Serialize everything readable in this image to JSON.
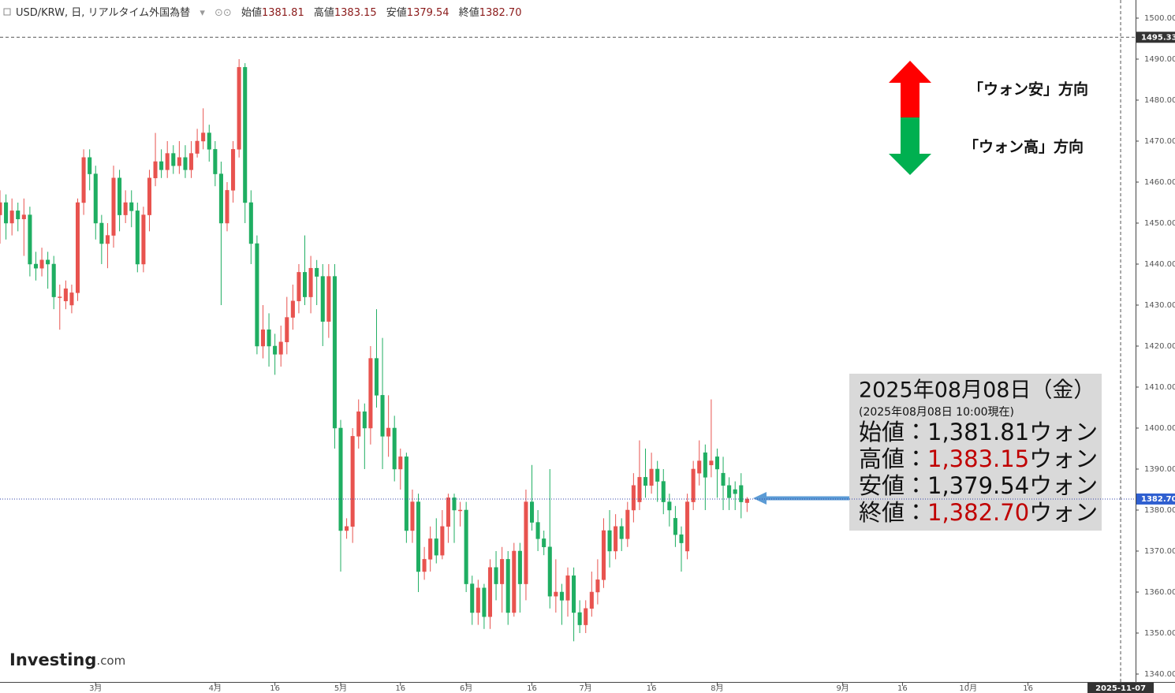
{
  "header": {
    "symbol": "USD/KRW, 日, リアルタイム外国為替",
    "open_label": "始値",
    "open": "1381.81",
    "high_label": "高値",
    "high": "1383.15",
    "low_label": "安値",
    "low": "1379.54",
    "close_label": "終値",
    "close": "1382.70"
  },
  "logo": {
    "brand": "Investing",
    "suffix": ".com"
  },
  "direction_labels": {
    "up": "「ウォン安」方向",
    "down": "「ウォン高」方向"
  },
  "info_box": {
    "date": "2025年08月08日（金）",
    "as_of": "(2025年08月08日 10:00現在)",
    "rows": [
      {
        "label": "始値：",
        "value": "1,381.81",
        "unit": "ウォン",
        "value_color": "#111111"
      },
      {
        "label": "高値：",
        "value": "1,383.15",
        "unit": "ウォン",
        "value_color": "#c00000"
      },
      {
        "label": "安値：",
        "value": "1,379.54",
        "unit": "ウォン",
        "value_color": "#111111"
      },
      {
        "label": "終値：",
        "value": "1,382.70",
        "unit": "ウォン",
        "value_color": "#c00000"
      }
    ]
  },
  "chart_data": {
    "type": "candlestick",
    "up_color": "#e8534f",
    "down_color": "#1fae62",
    "x": [
      0,
      1,
      2,
      3,
      4,
      5,
      6,
      7,
      8,
      9,
      10,
      11,
      12,
      13,
      14,
      15,
      16,
      17,
      18,
      19,
      20,
      21,
      22,
      23,
      24,
      25,
      26,
      27,
      28,
      29,
      30,
      31,
      32,
      33,
      34,
      35,
      36,
      37,
      38,
      39,
      40,
      41,
      42,
      43,
      44,
      45,
      46,
      47,
      48,
      49,
      50,
      51,
      52,
      53,
      54,
      55,
      56,
      57,
      58,
      59,
      60,
      61,
      62,
      63,
      64,
      65,
      66,
      67,
      68,
      69,
      70,
      71,
      72,
      73,
      74,
      75,
      76,
      77,
      78,
      79,
      80,
      81,
      82,
      83,
      84,
      85,
      86,
      87,
      88,
      89,
      90,
      91,
      92,
      93,
      94,
      95,
      96,
      97,
      98,
      99,
      100,
      101,
      102,
      103,
      104,
      105,
      106,
      107,
      108,
      109,
      110,
      111,
      112,
      113,
      114,
      115,
      116,
      117,
      118,
      119,
      120,
      121,
      122,
      123,
      124,
      125
    ],
    "open": [
      1452,
      1455,
      1450,
      1453,
      1451,
      1452,
      1440,
      1439,
      1441,
      1440,
      1432,
      1431,
      1430,
      1433,
      1455,
      1466,
      1462,
      1450,
      1445,
      1447,
      1461,
      1452,
      1455,
      1453,
      1440,
      1452,
      1461,
      1465,
      1463,
      1467,
      1464,
      1466,
      1463,
      1467,
      1470,
      1472,
      1468,
      1462,
      1450,
      1458,
      1468,
      1488,
      1455,
      1445,
      1420,
      1424,
      1420,
      1418,
      1421,
      1427,
      1431,
      1438,
      1432,
      1439,
      1437,
      1426,
      1437,
      1400,
      1375,
      1376,
      1398,
      1404,
      1400,
      1417,
      1408,
      1398,
      1400,
      1390,
      1393,
      1375,
      1382,
      1365,
      1368,
      1373,
      1369,
      1376,
      1383,
      1380,
      1380,
      1362,
      1355,
      1361,
      1354,
      1366,
      1362,
      1368,
      1355,
      1370,
      1362,
      1382,
      1377,
      1373,
      1371,
      1359,
      1360,
      1358,
      1364,
      1355,
      1352,
      1356,
      1360,
      1363,
      1375,
      1370,
      1376,
      1373,
      1380,
      1382,
      1388,
      1386,
      1390,
      1387,
      1382,
      1378,
      1374,
      1370,
      1382,
      1389,
      1394,
      1391,
      1393,
      1389,
      1386,
      1385,
      1386,
      1381.81
    ],
    "high": [
      1458,
      1457,
      1456,
      1455,
      1456,
      1454,
      1443,
      1444,
      1443,
      1442,
      1435,
      1436,
      1435,
      1456,
      1468,
      1468,
      1464,
      1452,
      1450,
      1464,
      1463,
      1458,
      1458,
      1455,
      1454,
      1463,
      1472,
      1468,
      1470,
      1469,
      1470,
      1469,
      1470,
      1473,
      1478,
      1474,
      1470,
      1465,
      1460,
      1470,
      1490,
      1489,
      1458,
      1447,
      1430,
      1428,
      1423,
      1425,
      1432,
      1435,
      1440,
      1447,
      1442,
      1441,
      1440,
      1440,
      1440,
      1402,
      1378,
      1400,
      1407,
      1406,
      1420,
      1429,
      1422,
      1408,
      1403,
      1395,
      1394,
      1385,
      1384,
      1371,
      1376,
      1378,
      1380,
      1384,
      1384,
      1382,
      1382,
      1364,
      1363,
      1362,
      1368,
      1370,
      1371,
      1370,
      1372,
      1372,
      1385,
      1391,
      1380,
      1375,
      1390,
      1368,
      1362,
      1366,
      1366,
      1358,
      1358,
      1365,
      1368,
      1378,
      1380,
      1379,
      1378,
      1382,
      1389,
      1397,
      1395,
      1394,
      1392,
      1390,
      1384,
      1381,
      1376,
      1384,
      1392,
      1397,
      1396,
      1407,
      1395,
      1393,
      1388,
      1387,
      1389,
      1383.15
    ],
    "low": [
      1445,
      1446,
      1447,
      1448,
      1442,
      1437,
      1436,
      1437,
      1434,
      1429,
      1424,
      1429,
      1428,
      1431,
      1452,
      1458,
      1446,
      1440,
      1439,
      1444,
      1448,
      1450,
      1449,
      1438,
      1438,
      1448,
      1459,
      1461,
      1461,
      1462,
      1462,
      1461,
      1461,
      1466,
      1468,
      1465,
      1459,
      1430,
      1448,
      1455,
      1466,
      1450,
      1440,
      1418,
      1417,
      1415,
      1413,
      1415,
      1418,
      1424,
      1428,
      1430,
      1428,
      1430,
      1420,
      1422,
      1395,
      1365,
      1373,
      1372,
      1395,
      1390,
      1396,
      1405,
      1390,
      1393,
      1387,
      1385,
      1372,
      1372,
      1360,
      1363,
      1365,
      1367,
      1368,
      1372,
      1372,
      1376,
      1360,
      1352,
      1352,
      1351,
      1351,
      1358,
      1355,
      1352,
      1354,
      1355,
      1358,
      1375,
      1370,
      1369,
      1356,
      1355,
      1352,
      1354,
      1348,
      1350,
      1350,
      1354,
      1357,
      1361,
      1366,
      1368,
      1370,
      1371,
      1377,
      1380,
      1383,
      1384,
      1382,
      1379,
      1376,
      1371,
      1365,
      1368,
      1380,
      1386,
      1380,
      1388,
      1383,
      1380,
      1380,
      1380,
      1378,
      1379.54
    ],
    "close": [
      1455,
      1450,
      1453,
      1451,
      1452,
      1440,
      1439,
      1441,
      1440,
      1432,
      1432,
      1434,
      1433,
      1455,
      1466,
      1462,
      1450,
      1445,
      1447,
      1461,
      1452,
      1455,
      1453,
      1440,
      1452,
      1461,
      1465,
      1463,
      1467,
      1464,
      1466,
      1463,
      1467,
      1470,
      1472,
      1468,
      1462,
      1450,
      1458,
      1468,
      1488,
      1455,
      1445,
      1420,
      1424,
      1420,
      1418,
      1421,
      1427,
      1431,
      1438,
      1432,
      1439,
      1437,
      1426,
      1437,
      1400,
      1375,
      1376,
      1398,
      1404,
      1400,
      1417,
      1408,
      1398,
      1400,
      1390,
      1393,
      1375,
      1382,
      1365,
      1368,
      1373,
      1369,
      1376,
      1383,
      1380,
      1380,
      1362,
      1355,
      1361,
      1354,
      1366,
      1362,
      1368,
      1355,
      1370,
      1362,
      1382,
      1377,
      1373,
      1371,
      1359,
      1360,
      1358,
      1364,
      1355,
      1352,
      1356,
      1360,
      1363,
      1375,
      1370,
      1376,
      1373,
      1380,
      1386,
      1388,
      1386,
      1390,
      1387,
      1382,
      1380,
      1374,
      1372,
      1382,
      1390,
      1392,
      1388,
      1392,
      1390,
      1386,
      1383,
      1384,
      1382,
      1382.7
    ],
    "xlim": [
      0,
      190
    ],
    "ylim": [
      1337.88,
      1504.42
    ],
    "xticks": [
      {
        "value": 16,
        "label": "3月"
      },
      {
        "value": 36,
        "label": "4月"
      },
      {
        "value": 46,
        "label": "16"
      },
      {
        "value": 57,
        "label": "5月"
      },
      {
        "value": 67,
        "label": "16"
      },
      {
        "value": 78,
        "label": "6月"
      },
      {
        "value": 89,
        "label": "16"
      },
      {
        "value": 98,
        "label": "7月"
      },
      {
        "value": 109,
        "label": "16"
      },
      {
        "value": 120,
        "label": "8月"
      },
      {
        "value": 141,
        "label": "9月"
      },
      {
        "value": 151,
        "label": "16"
      },
      {
        "value": 162,
        "label": "10月"
      },
      {
        "value": 172,
        "label": "16"
      }
    ],
    "cursor_x": {
      "value": 187.5,
      "label": "2025-11-07"
    },
    "yticks": [
      {
        "value": 1340,
        "label": "1340.00"
      },
      {
        "value": 1350,
        "label": "1350.00"
      },
      {
        "value": 1360,
        "label": "1360.00"
      },
      {
        "value": 1370,
        "label": "1370.00"
      },
      {
        "value": 1380,
        "label": "1380.00"
      },
      {
        "value": 1390,
        "label": "1390.00"
      },
      {
        "value": 1400,
        "label": "1400.00"
      },
      {
        "value": 1410,
        "label": "1410.00"
      },
      {
        "value": 1420,
        "label": "1420.00"
      },
      {
        "value": 1430,
        "label": "1430.00"
      },
      {
        "value": 1440,
        "label": "1440.00"
      },
      {
        "value": 1450,
        "label": "1450.00"
      },
      {
        "value": 1460,
        "label": "1460.00"
      },
      {
        "value": 1470,
        "label": "1470.00"
      },
      {
        "value": 1480,
        "label": "1480.00"
      },
      {
        "value": 1490,
        "label": "1490.00"
      },
      {
        "value": 1500,
        "label": "1500.00"
      }
    ],
    "cursor_y": 1495.33,
    "last_price": {
      "value": 1382.7,
      "label": "1382.70"
    }
  }
}
